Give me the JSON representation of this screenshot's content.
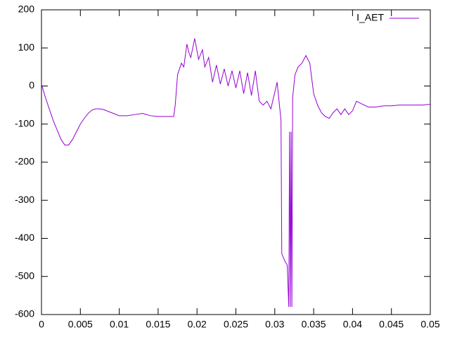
{
  "chart_data": {
    "type": "line",
    "x": [
      0,
      0.0005,
      0.001,
      0.0015,
      0.002,
      0.0025,
      0.003,
      0.0035,
      0.004,
      0.0045,
      0.005,
      0.0055,
      0.006,
      0.0065,
      0.007,
      0.0075,
      0.008,
      0.009,
      0.01,
      0.011,
      0.012,
      0.013,
      0.014,
      0.015,
      0.016,
      0.017,
      0.0172,
      0.0175,
      0.018,
      0.0183,
      0.0187,
      0.019,
      0.0192,
      0.0197,
      0.0202,
      0.0207,
      0.021,
      0.0215,
      0.022,
      0.0225,
      0.023,
      0.0235,
      0.024,
      0.0245,
      0.025,
      0.0255,
      0.026,
      0.0265,
      0.027,
      0.0275,
      0.028,
      0.0285,
      0.029,
      0.0295,
      0.0303,
      0.0308,
      0.0309,
      0.0313,
      0.0316,
      0.0318,
      0.0319,
      0.032,
      0.0321,
      0.0322,
      0.0323,
      0.0326,
      0.033,
      0.0335,
      0.034,
      0.0345,
      0.035,
      0.0355,
      0.036,
      0.0365,
      0.037,
      0.0375,
      0.038,
      0.0385,
      0.039,
      0.0395,
      0.04,
      0.0405,
      0.041,
      0.042,
      0.043,
      0.044,
      0.045,
      0.046,
      0.047,
      0.048,
      0.049,
      0.05
    ],
    "series": [
      {
        "name": "I_AET",
        "color": "#9400d3",
        "values": [
          5,
          -30,
          -60,
          -90,
          -115,
          -140,
          -155,
          -155,
          -140,
          -120,
          -100,
          -85,
          -72,
          -63,
          -60,
          -60,
          -62,
          -70,
          -78,
          -78,
          -75,
          -72,
          -78,
          -80,
          -80,
          -80,
          -50,
          30,
          60,
          50,
          110,
          85,
          75,
          125,
          70,
          95,
          50,
          75,
          10,
          55,
          5,
          45,
          0,
          40,
          -5,
          40,
          -20,
          35,
          -25,
          40,
          -40,
          -50,
          -40,
          -60,
          10,
          -90,
          -440,
          -460,
          -470,
          -580,
          -120,
          -580,
          -120,
          -580,
          -30,
          30,
          50,
          60,
          80,
          60,
          -20,
          -50,
          -70,
          -80,
          -85,
          -70,
          -60,
          -75,
          -60,
          -75,
          -65,
          -40,
          -45,
          -55,
          -55,
          -52,
          -52,
          -50,
          -50,
          -50,
          -50,
          -48
        ]
      }
    ],
    "xlim": [
      0,
      0.05
    ],
    "xticks": [
      0,
      0.005,
      0.01,
      0.015,
      0.02,
      0.025,
      0.03,
      0.035,
      0.04,
      0.045,
      0.05
    ],
    "ylim": [
      -600,
      200
    ],
    "yticks": [
      -600,
      -500,
      -400,
      -300,
      -200,
      -100,
      0,
      100,
      200
    ],
    "legend": "top-right"
  }
}
